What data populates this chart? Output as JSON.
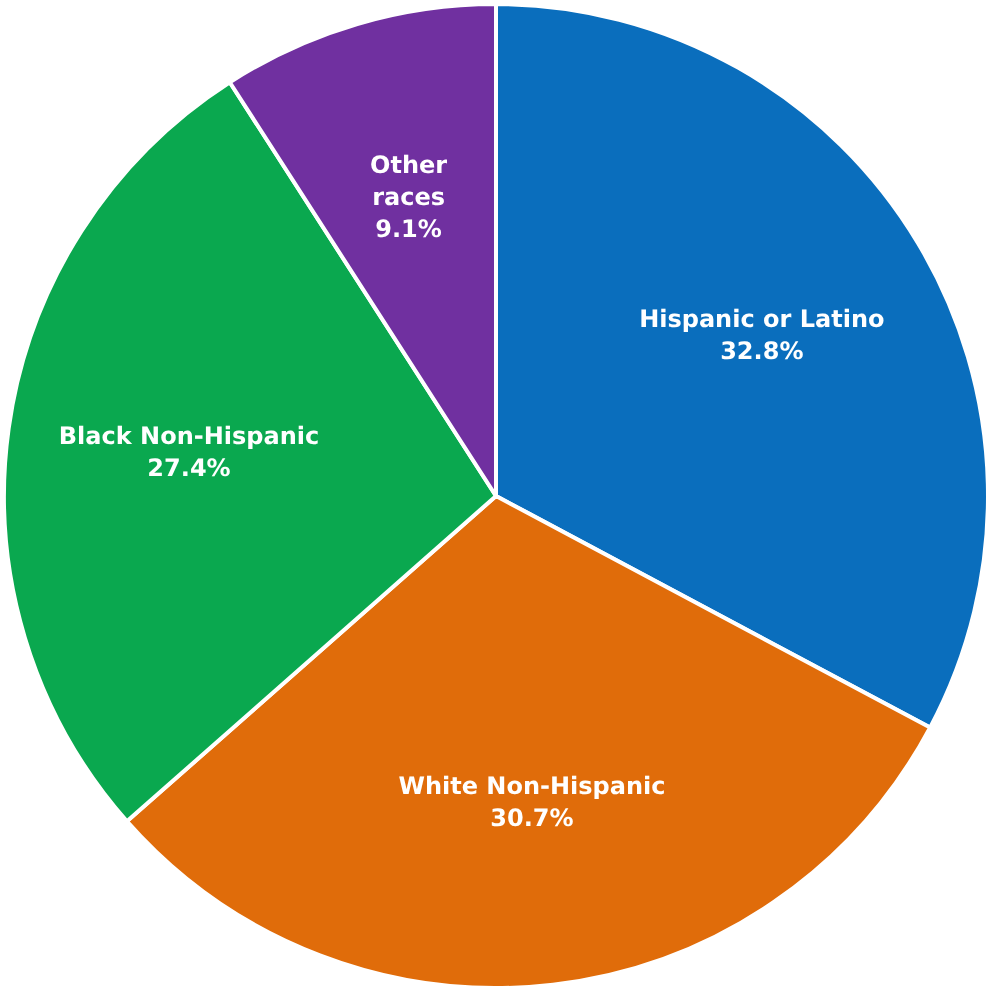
{
  "chart_data": {
    "type": "pie",
    "categories": [
      "Hispanic or Latino",
      "White Non-Hispanic",
      "Black Non-Hispanic",
      "Other races"
    ],
    "values": [
      32.8,
      30.7,
      27.4,
      9.1
    ],
    "value_labels": [
      "32.8%",
      "30.7%",
      "27.4%",
      "9.1%"
    ],
    "colors": [
      "#0a6ebd",
      "#e06c0a",
      "#0aa84f",
      "#7030a0"
    ],
    "legend": false
  }
}
